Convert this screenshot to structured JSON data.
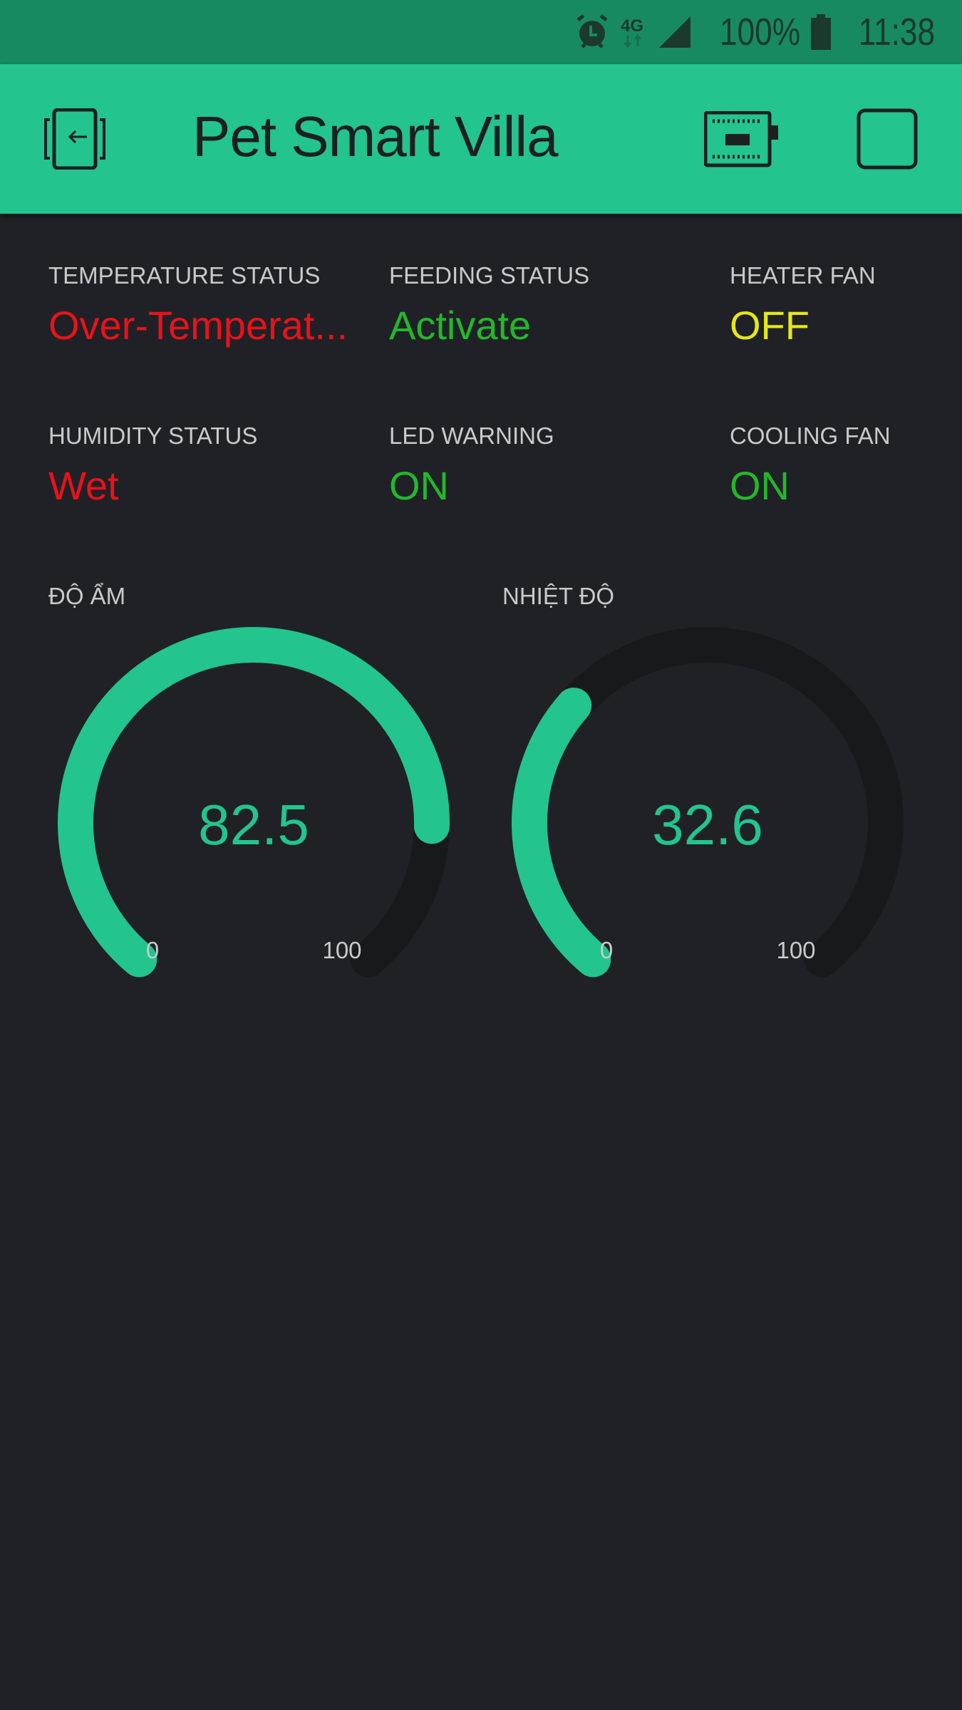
{
  "status_bar": {
    "battery": "100%",
    "time": "11:38",
    "network": "4G",
    "icons": [
      "alarm-icon",
      "network-4g-icon",
      "signal-icon",
      "battery-icon"
    ]
  },
  "header": {
    "title": "Pet Smart Villa",
    "icons": [
      "exit-icon",
      "device-board-icon",
      "stop-square-icon"
    ]
  },
  "colors": {
    "accent": "#23c48e",
    "status_bar": "#188a62",
    "background": "#202126",
    "red": "#e8121b",
    "green": "#22b82b",
    "yellow": "#e5e61c",
    "gauge_track": "#18191d"
  },
  "widgets": [
    {
      "label": "TEMPERATURE STATUS",
      "value": "Over-Temperat...",
      "color": "#e8121b"
    },
    {
      "label": "FEEDING STATUS",
      "value": "Activate",
      "color": "#22b82b"
    },
    {
      "label": "HEATER FAN",
      "value": "OFF",
      "color": "#e5e61c"
    },
    {
      "label": "HUMIDITY STATUS",
      "value": "Wet",
      "color": "#e8121b"
    },
    {
      "label": "LED WARNING",
      "value": "ON",
      "color": "#22b82b"
    },
    {
      "label": "COOLING FAN",
      "value": "ON",
      "color": "#22b82b"
    }
  ],
  "gauges": [
    {
      "label": "ĐỘ ẨM",
      "value": "82.5",
      "min": "0",
      "max": "100"
    },
    {
      "label": "NHIỆT ĐỘ",
      "value": "32.6",
      "min": "0",
      "max": "100"
    }
  ]
}
